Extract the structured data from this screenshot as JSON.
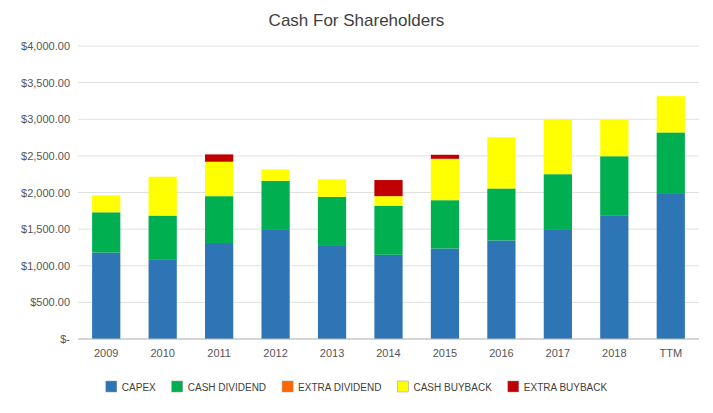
{
  "chart_data": {
    "type": "bar",
    "stacked": true,
    "title": "Cash For Shareholders",
    "categories": [
      "2009",
      "2010",
      "2011",
      "2012",
      "2013",
      "2014",
      "2015",
      "2016",
      "2017",
      "2018",
      "TTM"
    ],
    "series": [
      {
        "name": "CAPEX",
        "color": "#2E75B6",
        "values": [
          1180,
          1090,
          1310,
          1500,
          1270,
          1150,
          1235,
          1345,
          1500,
          1690,
          1980
        ]
      },
      {
        "name": "CASH DIVIDEND",
        "color": "#00B050",
        "values": [
          550,
          595,
          640,
          660,
          670,
          670,
          660,
          710,
          750,
          805,
          840
        ]
      },
      {
        "name": "EXTRA DIVIDEND",
        "color": "#FF6600",
        "values": [
          0,
          0,
          0,
          0,
          0,
          0,
          0,
          0,
          0,
          0,
          0
        ]
      },
      {
        "name": "CASH BUYBACK",
        "color": "#FFFF00",
        "values": [
          230,
          530,
          470,
          155,
          240,
          130,
          565,
          700,
          745,
          495,
          495
        ]
      },
      {
        "name": "EXTRA BUYBACK",
        "color": "#C00000",
        "values": [
          0,
          0,
          100,
          0,
          0,
          220,
          55,
          0,
          0,
          0,
          0
        ]
      }
    ],
    "ylim": [
      0,
      4000
    ],
    "yticks": [
      {
        "value": 0,
        "label": "$-"
      },
      {
        "value": 500,
        "label": "$500.00"
      },
      {
        "value": 1000,
        "label": "$1,000.00"
      },
      {
        "value": 1500,
        "label": "$1,500.00"
      },
      {
        "value": 2000,
        "label": "$2,000.00"
      },
      {
        "value": 2500,
        "label": "$2,500.00"
      },
      {
        "value": 3000,
        "label": "$3,000.00"
      },
      {
        "value": 3500,
        "label": "$3,500.00"
      },
      {
        "value": 4000,
        "label": "$4,000.00"
      }
    ],
    "grid": true,
    "legend": "bottom"
  }
}
